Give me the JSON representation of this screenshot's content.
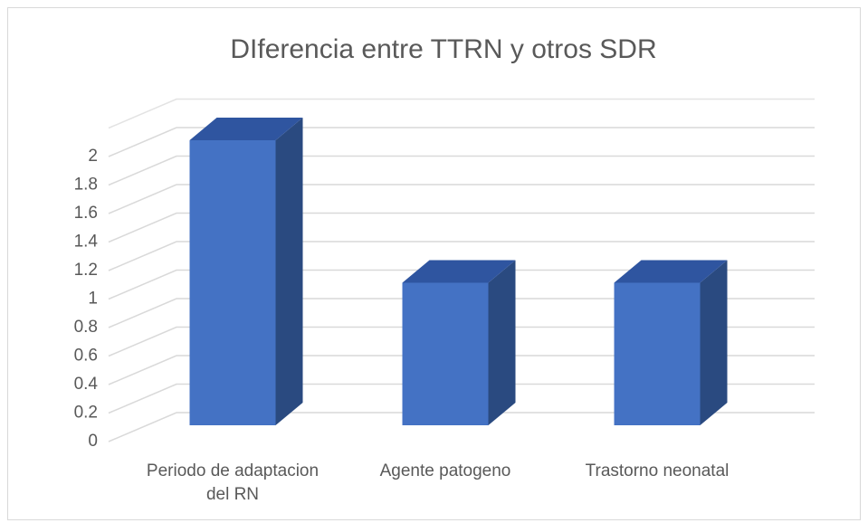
{
  "chart_data": {
    "type": "bar3d",
    "title": "DIferencia entre TTRN y otros SDR",
    "categories": [
      "Periodo de adaptacion del RN",
      "Agente patogeno",
      "Trastorno neonatal"
    ],
    "values": [
      2,
      1,
      1
    ],
    "color": "#4472c4",
    "ylim": [
      0,
      2.2
    ],
    "yticks": [
      0,
      0.2,
      0.4,
      0.6,
      0.8,
      1,
      1.2,
      1.4,
      1.6,
      1.8,
      2
    ],
    "grid": true
  }
}
